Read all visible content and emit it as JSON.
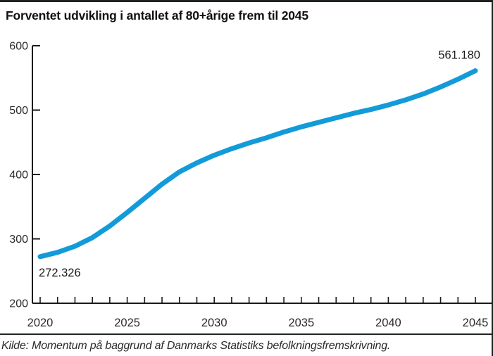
{
  "header": {
    "title": "Forventet udvikling i antallet af 80+årige frem til 2045"
  },
  "footer": {
    "source": "Kilde: Momentum på baggrund af Danmarks Statistiks befolkningsfremskrivning."
  },
  "colors": {
    "line": "#129BD8",
    "axis": "#1a1a1a",
    "tick_label": "#2b2b2b",
    "annotation": "#1a1a1a"
  },
  "chart_data": {
    "type": "line",
    "title": "Forventet udvikling i antallet af 80+årige frem til 2045",
    "xlabel": "",
    "ylabel": "",
    "x": [
      2020,
      2021,
      2022,
      2023,
      2024,
      2025,
      2026,
      2027,
      2028,
      2029,
      2030,
      2031,
      2032,
      2033,
      2034,
      2035,
      2036,
      2037,
      2038,
      2039,
      2040,
      2041,
      2042,
      2043,
      2044,
      2045
    ],
    "values": [
      272.3,
      279.0,
      288.5,
      302.0,
      320.0,
      341.0,
      363.0,
      385.0,
      404.0,
      418.0,
      430.0,
      440.0,
      449.0,
      457.0,
      466.0,
      474.0,
      481.0,
      488.0,
      495.0,
      501.0,
      508.0,
      516.0,
      525.0,
      536.0,
      548.0,
      561.2
    ],
    "ylim": [
      200,
      600
    ],
    "yticks": [
      200,
      300,
      400,
      500,
      600
    ],
    "xlim": [
      2020,
      2045
    ],
    "xticks_minor_every": 1,
    "xticks_labeled": [
      2020,
      2025,
      2030,
      2035,
      2040,
      2045
    ],
    "grid": false,
    "legend": "none",
    "line_color": "#129BD8",
    "annotations": [
      {
        "x": 2020,
        "value": 272.326,
        "label": "272.326",
        "placement": "below-start"
      },
      {
        "x": 2045,
        "value": 561.18,
        "label": "561.180",
        "placement": "above-end"
      }
    ],
    "source": "Kilde: Momentum på baggrund af Danmarks Statistiks befolkningsfremskrivning."
  }
}
